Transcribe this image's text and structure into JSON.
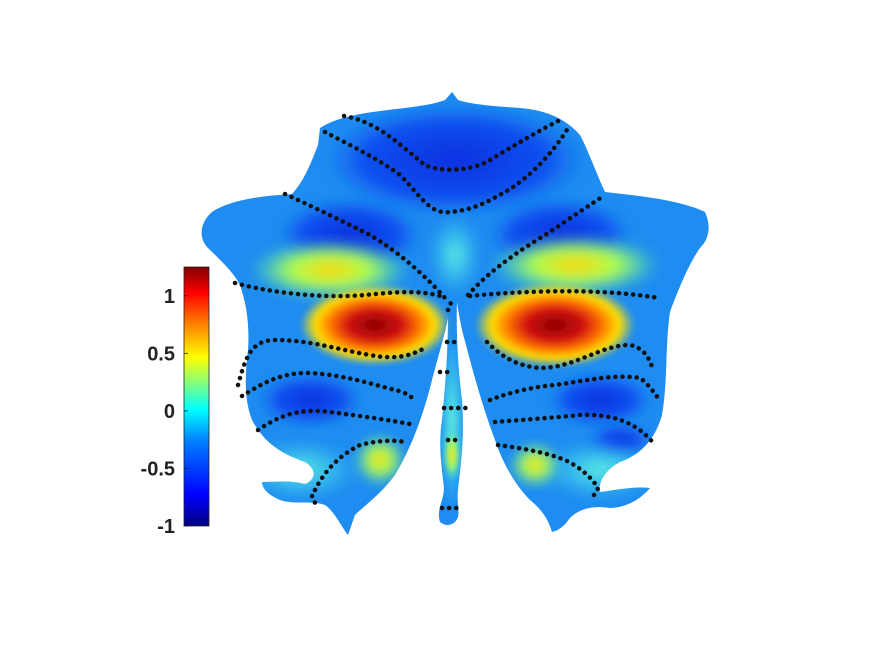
{
  "figure": {
    "type": "cerebellar-flatmap",
    "colormap": "jet",
    "background": "#ffffff",
    "boundary_color": "#111111"
  },
  "colorbar": {
    "range": [
      -1,
      1.25
    ],
    "ticks": [
      {
        "value": 1,
        "label": "1"
      },
      {
        "value": 0.5,
        "label": "0.5"
      },
      {
        "value": 0,
        "label": "0"
      },
      {
        "value": -0.5,
        "label": "-0.5"
      },
      {
        "value": -1,
        "label": "-1"
      }
    ],
    "colors": [
      "#00007f",
      "#0000ff",
      "#0080ff",
      "#00ffff",
      "#80ff80",
      "#ffff00",
      "#ff8000",
      "#ff0000",
      "#7f0000"
    ]
  }
}
